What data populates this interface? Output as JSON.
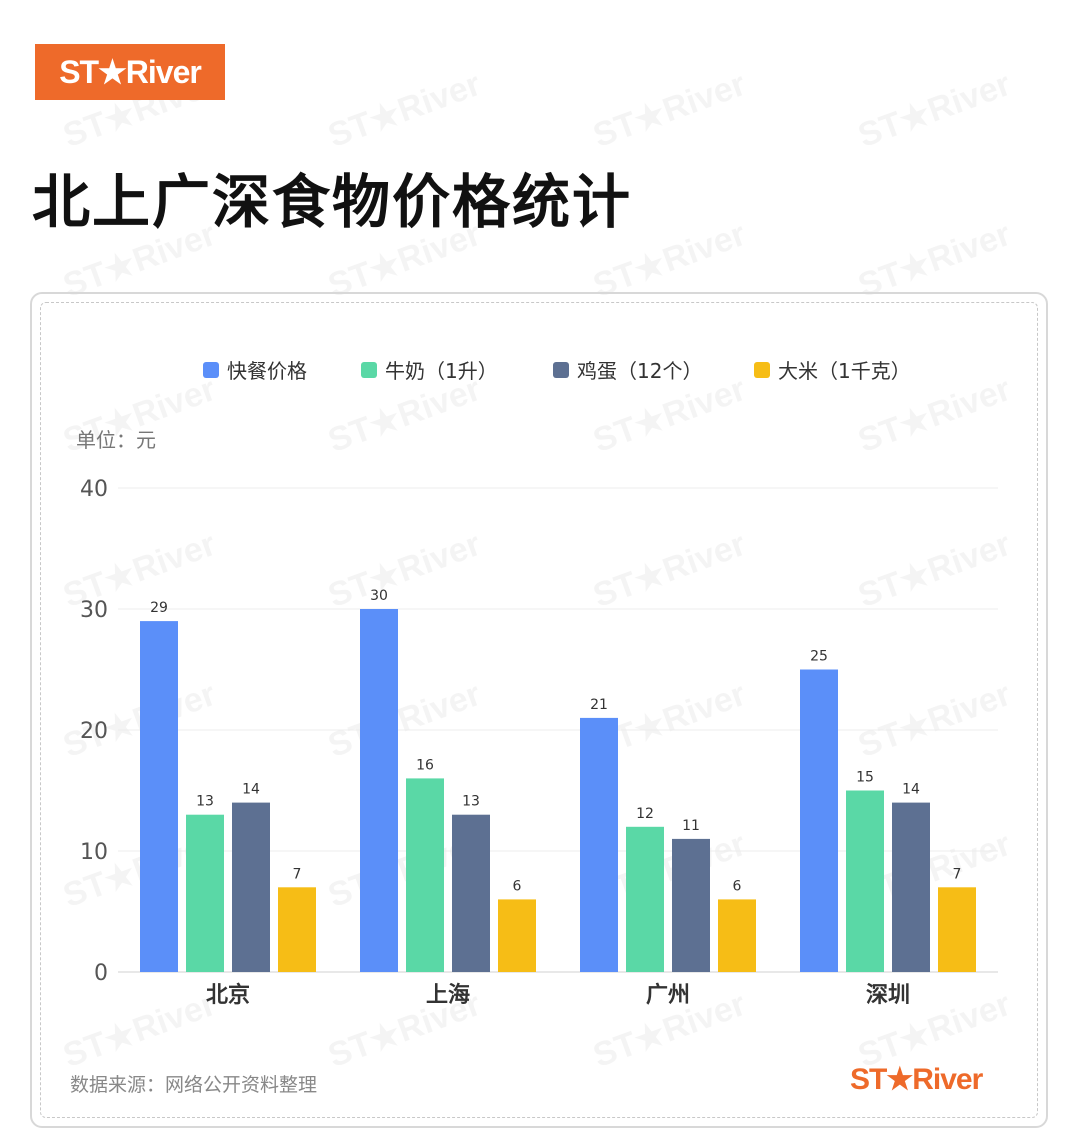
{
  "brand": {
    "logo_text": "ST★River",
    "accent_color": "#ee6a2a"
  },
  "page": {
    "title": "北上广深食物价格统计"
  },
  "chart_data": {
    "type": "bar",
    "title": "",
    "unit_label": "单位：元",
    "categories": [
      "北京",
      "上海",
      "广州",
      "深圳"
    ],
    "ylim": [
      0,
      40
    ],
    "yticks": [
      0,
      10,
      20,
      30,
      40
    ],
    "grid": true,
    "legend_position": "top",
    "series": [
      {
        "name": "快餐价格",
        "color": "#5b8ff9",
        "values": [
          29,
          30,
          21,
          25
        ]
      },
      {
        "name": "牛奶（1升）",
        "color": "#5ad8a6",
        "values": [
          13,
          16,
          12,
          15
        ]
      },
      {
        "name": "鸡蛋（12个）",
        "color": "#5d7092",
        "values": [
          14,
          13,
          11,
          14
        ]
      },
      {
        "name": "大米（1千克）",
        "color": "#f6bd16",
        "values": [
          7,
          6,
          6,
          7
        ]
      }
    ]
  },
  "footer": {
    "source": "数据来源：网络公开资料整理",
    "logo_text": "ST★River"
  }
}
